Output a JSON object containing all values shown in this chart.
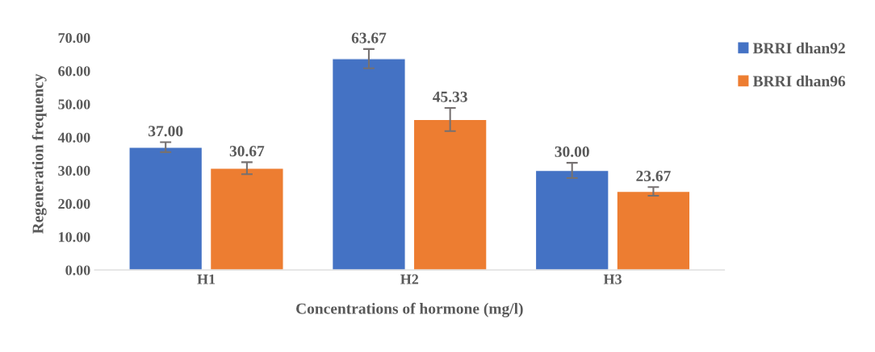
{
  "chart_data": {
    "type": "bar",
    "xlabel": "Concentrations of hormone (mg/l)",
    "ylabel": "Regeneration frequency",
    "categories": [
      "H1",
      "H2",
      "H3"
    ],
    "series": [
      {
        "name": "BRRI dhan92",
        "color": "#4472c4",
        "values": [
          37.0,
          63.67,
          30.0
        ],
        "value_labels": [
          "37.00",
          "63.67",
          "30.00"
        ],
        "errors": [
          1.5,
          2.9,
          2.3
        ]
      },
      {
        "name": "BRRI dhan96",
        "color": "#ed7d31",
        "values": [
          30.67,
          45.33,
          23.67
        ],
        "value_labels": [
          "30.67",
          "45.33",
          "23.67"
        ],
        "errors": [
          1.8,
          3.5,
          1.3
        ]
      }
    ],
    "ylim": [
      0,
      70
    ],
    "yticks": [
      {
        "value": 0,
        "label": "0.00"
      },
      {
        "value": 10,
        "label": "10.00"
      },
      {
        "value": 20,
        "label": "20.00"
      },
      {
        "value": 30,
        "label": "30.00"
      },
      {
        "value": 40,
        "label": "40.00"
      },
      {
        "value": 50,
        "label": "50.00"
      },
      {
        "value": 60,
        "label": "60.00"
      },
      {
        "value": 70,
        "label": "70.00"
      }
    ],
    "legend": "top right",
    "grid": false
  }
}
